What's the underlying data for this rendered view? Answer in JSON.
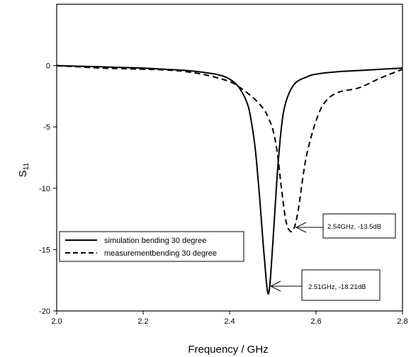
{
  "chart_data": {
    "type": "line",
    "title": "",
    "xlabel": "Frequency / GHz",
    "ylabel": "S11",
    "ylabel_main": "S",
    "ylabel_sub": "11",
    "xlim": [
      2.0,
      2.8
    ],
    "ylim": [
      -20,
      5
    ],
    "xticks": [
      2.0,
      2.2,
      2.4,
      2.6,
      2.8
    ],
    "xtick_labels": [
      "2.0",
      "2.2",
      "2.4",
      "2.6",
      "2.8"
    ],
    "yticks": [
      0,
      -5,
      -10,
      -15,
      -20
    ],
    "ytick_labels": [
      "0",
      "-5",
      "-10",
      "-15",
      "-20"
    ],
    "grid": false,
    "legend_position": "lower-left",
    "series": [
      {
        "name": "simulation bending 30 degree",
        "style": "solid",
        "color": "#000000",
        "x": [
          2.0,
          2.05,
          2.1,
          2.15,
          2.2,
          2.25,
          2.3,
          2.35,
          2.38,
          2.4,
          2.42,
          2.44,
          2.45,
          2.46,
          2.47,
          2.48,
          2.49,
          2.5,
          2.51,
          2.52,
          2.53,
          2.55,
          2.58,
          2.6,
          2.65,
          2.7,
          2.75,
          2.8
        ],
        "y": [
          0,
          -0.05,
          -0.1,
          -0.15,
          -0.2,
          -0.3,
          -0.4,
          -0.6,
          -0.8,
          -1.1,
          -1.7,
          -3.0,
          -4.5,
          -7.0,
          -11.0,
          -15.5,
          -18.6,
          -14.5,
          -9.0,
          -5.0,
          -3.0,
          -1.5,
          -0.9,
          -0.7,
          -0.5,
          -0.4,
          -0.3,
          -0.2
        ]
      },
      {
        "name": "measurementbending 30 degree",
        "style": "dashed",
        "color": "#000000",
        "x": [
          2.0,
          2.05,
          2.1,
          2.15,
          2.2,
          2.25,
          2.3,
          2.35,
          2.4,
          2.42,
          2.44,
          2.46,
          2.48,
          2.49,
          2.5,
          2.51,
          2.52,
          2.53,
          2.54,
          2.55,
          2.56,
          2.57,
          2.58,
          2.6,
          2.62,
          2.65,
          2.7,
          2.75,
          2.8
        ],
        "y": [
          0,
          -0.1,
          -0.2,
          -0.25,
          -0.3,
          -0.35,
          -0.5,
          -0.8,
          -1.3,
          -1.7,
          -2.2,
          -2.8,
          -3.6,
          -4.3,
          -5.2,
          -7.0,
          -10.0,
          -12.6,
          -13.5,
          -13.2,
          -11.5,
          -9.0,
          -7.0,
          -4.5,
          -3.0,
          -2.2,
          -1.8,
          -1.0,
          -0.3
        ]
      }
    ],
    "annotations": [
      {
        "text": "2.54GHz, -13.5dB",
        "point": [
          2.55,
          -13.5
        ]
      },
      {
        "text": "2.51GHz, -18.21dB",
        "point": [
          2.49,
          -18.6
        ]
      }
    ]
  }
}
